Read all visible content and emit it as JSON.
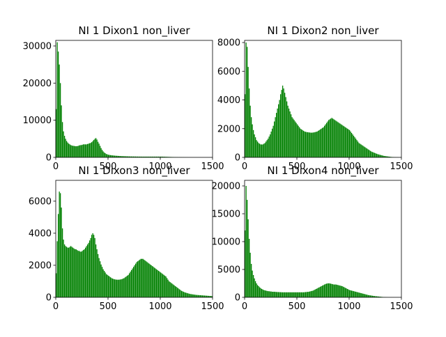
{
  "figure": {
    "colors": {
      "bar": "#008000",
      "axis": "#000000",
      "background": "#ffffff"
    }
  },
  "chart_data": [
    {
      "type": "bar",
      "title": "NI 1 Dixon1 non_liver",
      "xlim": [
        0,
        1500
      ],
      "ylim": [
        0,
        31500
      ],
      "xticks": [
        0,
        500,
        1000,
        1500
      ],
      "yticks": [
        0,
        10000,
        20000,
        30000
      ],
      "bin_width": 10,
      "x": [
        0,
        10,
        20,
        30,
        40,
        50,
        60,
        70,
        80,
        90,
        100,
        110,
        120,
        130,
        140,
        150,
        160,
        170,
        180,
        190,
        200,
        210,
        220,
        230,
        240,
        250,
        260,
        270,
        280,
        290,
        300,
        310,
        320,
        330,
        340,
        350,
        360,
        370,
        380,
        390,
        400,
        410,
        420,
        430,
        440,
        450,
        460,
        470,
        480,
        490,
        500,
        510,
        520,
        530,
        540,
        550,
        560,
        570,
        580,
        590,
        600,
        610,
        620,
        630,
        640,
        650,
        660,
        670,
        680,
        690,
        700,
        710,
        720,
        730,
        740,
        750,
        760,
        770,
        780,
        790,
        800,
        810,
        820,
        830,
        840,
        850,
        860,
        870,
        880,
        890,
        900,
        910,
        920,
        930,
        940,
        950,
        960,
        970,
        980,
        990,
        1000,
        1010,
        1020,
        1030,
        1040,
        1050,
        1060,
        1070,
        1080,
        1090,
        1100,
        1110,
        1120,
        1130,
        1140,
        1150,
        1160,
        1170,
        1180,
        1190,
        1200,
        1210,
        1220,
        1230,
        1240,
        1250,
        1260,
        1270,
        1280,
        1290,
        1300,
        1310,
        1320,
        1330,
        1340,
        1350,
        1360,
        1370,
        1380,
        1390,
        1400,
        1410,
        1420,
        1430,
        1440,
        1450,
        1460,
        1470,
        1480,
        1490
      ],
      "values": [
        13000,
        31000,
        28500,
        25000,
        20000,
        14000,
        9500,
        7000,
        5800,
        5000,
        4400,
        4000,
        3700,
        3500,
        3300,
        3200,
        3100,
        3100,
        3000,
        3000,
        3000,
        3100,
        3200,
        3300,
        3300,
        3400,
        3500,
        3500,
        3500,
        3500,
        3600,
        3700,
        3800,
        3900,
        4100,
        4400,
        4700,
        5000,
        5200,
        4800,
        4200,
        3700,
        3100,
        2500,
        2000,
        1600,
        1300,
        1100,
        900,
        800,
        700,
        650,
        600,
        560,
        520,
        500,
        460,
        440,
        420,
        400,
        380,
        360,
        340,
        330,
        320,
        310,
        300,
        290,
        280,
        270,
        260,
        250,
        250,
        240,
        240,
        230,
        230,
        220,
        220,
        210,
        210,
        210,
        200,
        200,
        200,
        200,
        200,
        200,
        200,
        200,
        200,
        200,
        200,
        200,
        200,
        200,
        200,
        200,
        200,
        200,
        200,
        200,
        190,
        180,
        170,
        160,
        150,
        140,
        130,
        120,
        110,
        100,
        90,
        80,
        70,
        65,
        60,
        55,
        50,
        45,
        40,
        35,
        30,
        25,
        20,
        18,
        15,
        12,
        10,
        8,
        6,
        5,
        4,
        3,
        2,
        2,
        1,
        1,
        1,
        1,
        0,
        0,
        0,
        0,
        0,
        0,
        0,
        0,
        0,
        0
      ]
    },
    {
      "type": "bar",
      "title": "NI 1 Dixon2 non_liver",
      "xlim": [
        0,
        1500
      ],
      "ylim": [
        0,
        8150
      ],
      "xticks": [
        0,
        500,
        1000,
        1500
      ],
      "yticks": [
        0,
        2000,
        4000,
        6000,
        8000
      ],
      "bin_width": 10,
      "x": [
        0,
        10,
        20,
        30,
        40,
        50,
        60,
        70,
        80,
        90,
        100,
        110,
        120,
        130,
        140,
        150,
        160,
        170,
        180,
        190,
        200,
        210,
        220,
        230,
        240,
        250,
        260,
        270,
        280,
        290,
        300,
        310,
        320,
        330,
        340,
        350,
        360,
        370,
        380,
        390,
        400,
        410,
        420,
        430,
        440,
        450,
        460,
        470,
        480,
        490,
        500,
        510,
        520,
        530,
        540,
        550,
        560,
        570,
        580,
        590,
        600,
        610,
        620,
        630,
        640,
        650,
        660,
        670,
        680,
        690,
        700,
        710,
        720,
        730,
        740,
        750,
        760,
        770,
        780,
        790,
        800,
        810,
        820,
        830,
        840,
        850,
        860,
        870,
        880,
        890,
        900,
        910,
        920,
        930,
        940,
        950,
        960,
        970,
        980,
        990,
        1000,
        1010,
        1020,
        1030,
        1040,
        1050,
        1060,
        1070,
        1080,
        1090,
        1100,
        1110,
        1120,
        1130,
        1140,
        1150,
        1160,
        1170,
        1180,
        1190,
        1200,
        1210,
        1220,
        1230,
        1240,
        1250,
        1260,
        1270,
        1280,
        1290,
        1300,
        1310,
        1320,
        1330,
        1340,
        1350,
        1360,
        1370,
        1380,
        1390,
        1400,
        1410,
        1420,
        1430,
        1440,
        1450,
        1460,
        1470,
        1480,
        1490
      ],
      "values": [
        4400,
        8000,
        7700,
        6300,
        4800,
        3600,
        2800,
        2300,
        1900,
        1600,
        1400,
        1200,
        1100,
        1000,
        950,
        900,
        900,
        900,
        950,
        1000,
        1100,
        1200,
        1300,
        1450,
        1600,
        1800,
        2000,
        2200,
        2500,
        2800,
        3100,
        3400,
        3700,
        4000,
        4400,
        4700,
        5000,
        4800,
        4500,
        4200,
        3900,
        3600,
        3400,
        3200,
        3000,
        2800,
        2700,
        2600,
        2500,
        2400,
        2300,
        2200,
        2100,
        2000,
        1950,
        1900,
        1850,
        1800,
        1780,
        1760,
        1750,
        1740,
        1730,
        1720,
        1720,
        1730,
        1740,
        1760,
        1780,
        1800,
        1850,
        1900,
        1950,
        2000,
        2050,
        2100,
        2200,
        2300,
        2400,
        2500,
        2600,
        2650,
        2700,
        2750,
        2700,
        2650,
        2600,
        2550,
        2500,
        2450,
        2400,
        2350,
        2300,
        2250,
        2200,
        2150,
        2100,
        2050,
        2000,
        1950,
        1900,
        1800,
        1700,
        1600,
        1500,
        1400,
        1300,
        1200,
        1100,
        1000,
        950,
        900,
        850,
        800,
        750,
        700,
        650,
        600,
        550,
        500,
        450,
        400,
        370,
        340,
        310,
        280,
        250,
        220,
        200,
        180,
        160,
        140,
        120,
        100,
        90,
        80,
        70,
        60,
        50,
        40,
        30,
        25,
        20,
        15,
        10,
        8,
        6,
        4,
        2,
        1
      ]
    },
    {
      "type": "bar",
      "title": "NI 1 Dixon3 non_liver",
      "xlim": [
        0,
        1500
      ],
      "ylim": [
        0,
        7300
      ],
      "xticks": [
        0,
        500,
        1000,
        1500
      ],
      "yticks": [
        0,
        2000,
        4000,
        6000
      ],
      "bin_width": 10,
      "x": [
        0,
        10,
        20,
        30,
        40,
        50,
        60,
        70,
        80,
        90,
        100,
        110,
        120,
        130,
        140,
        150,
        160,
        170,
        180,
        190,
        200,
        210,
        220,
        230,
        240,
        250,
        260,
        270,
        280,
        290,
        300,
        310,
        320,
        330,
        340,
        350,
        360,
        370,
        380,
        390,
        400,
        410,
        420,
        430,
        440,
        450,
        460,
        470,
        480,
        490,
        500,
        510,
        520,
        530,
        540,
        550,
        560,
        570,
        580,
        590,
        600,
        610,
        620,
        630,
        640,
        650,
        660,
        670,
        680,
        690,
        700,
        710,
        720,
        730,
        740,
        750,
        760,
        770,
        780,
        790,
        800,
        810,
        820,
        830,
        840,
        850,
        860,
        870,
        880,
        890,
        900,
        910,
        920,
        930,
        940,
        950,
        960,
        970,
        980,
        990,
        1000,
        1010,
        1020,
        1030,
        1040,
        1050,
        1060,
        1070,
        1080,
        1090,
        1100,
        1110,
        1120,
        1130,
        1140,
        1150,
        1160,
        1170,
        1180,
        1190,
        1200,
        1210,
        1220,
        1230,
        1240,
        1250,
        1260,
        1270,
        1280,
        1290,
        1300,
        1310,
        1320,
        1330,
        1340,
        1350,
        1360,
        1370,
        1380,
        1390,
        1400,
        1410,
        1420,
        1430,
        1440,
        1450,
        1460,
        1470,
        1480,
        1490
      ],
      "values": [
        1500,
        3500,
        5200,
        6600,
        6500,
        5600,
        4300,
        3600,
        3300,
        3200,
        3150,
        3100,
        3100,
        3150,
        3200,
        3150,
        3100,
        3050,
        3000,
        3000,
        2950,
        2900,
        2900,
        2850,
        2850,
        2900,
        2950,
        3000,
        3100,
        3200,
        3300,
        3400,
        3550,
        3700,
        3900,
        4000,
        3900,
        3700,
        3300,
        3000,
        2700,
        2450,
        2250,
        2050,
        1900,
        1750,
        1650,
        1550,
        1450,
        1400,
        1350,
        1300,
        1250,
        1200,
        1170,
        1140,
        1120,
        1110,
        1100,
        1100,
        1100,
        1110,
        1120,
        1140,
        1170,
        1200,
        1250,
        1300,
        1350,
        1400,
        1500,
        1600,
        1700,
        1800,
        1900,
        2000,
        2100,
        2200,
        2250,
        2300,
        2350,
        2400,
        2400,
        2400,
        2350,
        2300,
        2250,
        2200,
        2150,
        2100,
        2050,
        2000,
        1950,
        1900,
        1850,
        1800,
        1750,
        1700,
        1650,
        1600,
        1550,
        1500,
        1450,
        1400,
        1350,
        1300,
        1200,
        1100,
        1000,
        950,
        900,
        850,
        800,
        750,
        700,
        650,
        600,
        550,
        500,
        450,
        400,
        370,
        340,
        310,
        290,
        270,
        250,
        230,
        210,
        200,
        190,
        180,
        170,
        160,
        150,
        145,
        140,
        135,
        130,
        125,
        120,
        115,
        110,
        105,
        100,
        95,
        90,
        85,
        80,
        75
      ]
    },
    {
      "type": "bar",
      "title": "NI 1 Dixon4 non_liver",
      "xlim": [
        0,
        1500
      ],
      "ylim": [
        0,
        21000
      ],
      "xticks": [
        0,
        500,
        1000,
        1500
      ],
      "yticks": [
        0,
        5000,
        10000,
        15000,
        20000
      ],
      "bin_width": 10,
      "x": [
        0,
        10,
        20,
        30,
        40,
        50,
        60,
        70,
        80,
        90,
        100,
        110,
        120,
        130,
        140,
        150,
        160,
        170,
        180,
        190,
        200,
        210,
        220,
        230,
        240,
        250,
        260,
        270,
        280,
        290,
        300,
        310,
        320,
        330,
        340,
        350,
        360,
        370,
        380,
        390,
        400,
        410,
        420,
        430,
        440,
        450,
        460,
        470,
        480,
        490,
        500,
        510,
        520,
        530,
        540,
        550,
        560,
        570,
        580,
        590,
        600,
        610,
        620,
        630,
        640,
        650,
        660,
        670,
        680,
        690,
        700,
        710,
        720,
        730,
        740,
        750,
        760,
        770,
        780,
        790,
        800,
        810,
        820,
        830,
        840,
        850,
        860,
        870,
        880,
        890,
        900,
        910,
        920,
        930,
        940,
        950,
        960,
        970,
        980,
        990,
        1000,
        1010,
        1020,
        1030,
        1040,
        1050,
        1060,
        1070,
        1080,
        1090,
        1100,
        1110,
        1120,
        1130,
        1140,
        1150,
        1160,
        1170,
        1180,
        1190,
        1200,
        1210,
        1220,
        1230,
        1240,
        1250,
        1260,
        1270,
        1280,
        1290,
        1300,
        1310,
        1320,
        1330,
        1340,
        1350,
        1360,
        1370,
        1380,
        1390,
        1400,
        1410,
        1420,
        1430,
        1440,
        1450,
        1460,
        1470,
        1480,
        1490
      ],
      "values": [
        12000,
        20000,
        17500,
        14000,
        10500,
        8000,
        6000,
        4800,
        4000,
        3400,
        2900,
        2500,
        2200,
        2000,
        1800,
        1650,
        1500,
        1400,
        1300,
        1250,
        1200,
        1150,
        1100,
        1100,
        1050,
        1050,
        1000,
        1000,
        1000,
        980,
        960,
        950,
        940,
        930,
        920,
        910,
        900,
        900,
        900,
        900,
        900,
        900,
        900,
        900,
        900,
        900,
        900,
        900,
        900,
        900,
        900,
        900,
        900,
        900,
        900,
        900,
        900,
        920,
        940,
        960,
        980,
        1000,
        1050,
        1100,
        1150,
        1200,
        1300,
        1400,
        1500,
        1600,
        1700,
        1800,
        1900,
        2000,
        2100,
        2200,
        2300,
        2400,
        2450,
        2500,
        2500,
        2500,
        2450,
        2400,
        2350,
        2300,
        2300,
        2300,
        2250,
        2200,
        2150,
        2100,
        2050,
        2000,
        1900,
        1800,
        1700,
        1600,
        1500,
        1400,
        1300,
        1250,
        1200,
        1150,
        1100,
        1050,
        1000,
        950,
        900,
        850,
        800,
        750,
        700,
        650,
        600,
        550,
        500,
        450,
        400,
        370,
        340,
        310,
        280,
        250,
        220,
        200,
        180,
        160,
        140,
        120,
        100,
        80,
        60,
        50,
        40,
        30,
        20,
        15,
        10,
        8,
        6,
        4,
        2,
        1,
        0,
        0,
        0,
        0,
        0,
        0
      ]
    }
  ]
}
